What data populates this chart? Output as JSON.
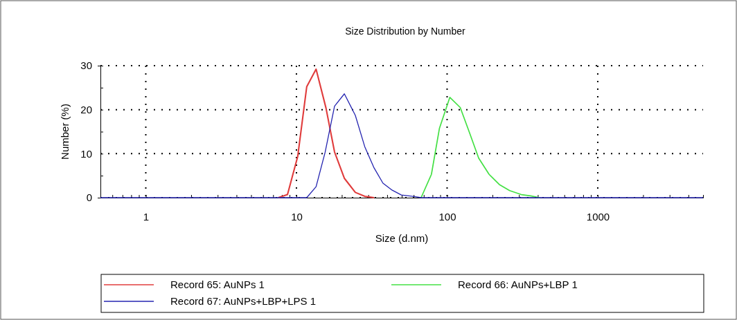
{
  "chart_data": {
    "type": "line",
    "title": "Size Distribution by Number",
    "xlabel": "Size (d.nm)",
    "ylabel": "Number (%)",
    "log": "x",
    "grid": true,
    "legend": "bottom",
    "xlim": [
      0.5,
      5000
    ],
    "ylim": [
      0,
      30
    ],
    "xticks": [
      {
        "value": 0.6,
        "label": null
      },
      {
        "value": 0.7,
        "label": null
      },
      {
        "value": 0.8,
        "label": null
      },
      {
        "value": 0.9,
        "label": null
      },
      1,
      {
        "value": 2,
        "label": null
      },
      {
        "value": 3,
        "label": null
      },
      {
        "value": 4,
        "label": null
      },
      {
        "value": 5,
        "label": null
      },
      {
        "value": 6,
        "label": null
      },
      {
        "value": 7,
        "label": null
      },
      {
        "value": 8,
        "label": null
      },
      {
        "value": 9,
        "label": null
      },
      10,
      {
        "value": 20,
        "label": null
      },
      {
        "value": 30,
        "label": null
      },
      {
        "value": 40,
        "label": null
      },
      {
        "value": 50,
        "label": null
      },
      {
        "value": 60,
        "label": null
      },
      {
        "value": 70,
        "label": null
      },
      {
        "value": 80,
        "label": null
      },
      {
        "value": 90,
        "label": null
      },
      100,
      {
        "value": 200,
        "label": null
      },
      {
        "value": 300,
        "label": null
      },
      {
        "value": 400,
        "label": null
      },
      {
        "value": 500,
        "label": null
      },
      {
        "value": 600,
        "label": null
      },
      {
        "value": 700,
        "label": null
      },
      {
        "value": 800,
        "label": null
      },
      {
        "value": 900,
        "label": null
      },
      1000,
      {
        "value": 2000,
        "label": null
      },
      {
        "value": 3000,
        "label": null
      },
      {
        "value": 4000,
        "label": null
      },
      {
        "value": 5000,
        "label": null
      }
    ],
    "yticks": [
      0,
      {
        "value": 5,
        "label": null
      },
      10,
      {
        "value": 15,
        "label": null
      },
      20,
      {
        "value": 25,
        "label": null
      },
      30
    ],
    "series": [
      {
        "name": "Record 65: AuNPs 1",
        "color": "#e03c3c",
        "x": [
          7.57,
          8.72,
          10.2,
          11.7,
          13.5,
          15.7,
          17.9,
          20.8,
          24.6,
          28.4,
          32.8
        ],
        "values": [
          0,
          0.7,
          9.4,
          25.2,
          29.2,
          20.4,
          10.4,
          4.4,
          1.2,
          0.3,
          0
        ]
      },
      {
        "name": "Record 66: AuNPs+LBP 1",
        "color": "#44e044",
        "x": [
          67.2,
          78.7,
          89.0,
          104.3,
          122.2,
          140.7,
          162,
          190,
          222,
          260,
          311,
          358,
          412
        ],
        "values": [
          0,
          5.3,
          15.8,
          22.8,
          20.5,
          14.8,
          9.0,
          5.3,
          3.0,
          1.6,
          0.7,
          0.4,
          0
        ]
      },
      {
        "name": "Record 67: AuNPs+LBP+LPS 1",
        "color": "#2424b0",
        "x": [
          0.5,
          11.7,
          13.5,
          15.5,
          17.9,
          20.8,
          24.6,
          28.4,
          32.6,
          37.5,
          43.2,
          49.7,
          59.4,
          67.2,
          5000
        ],
        "values": [
          0,
          0,
          2.5,
          10.3,
          20.8,
          23.6,
          18.7,
          11.6,
          6.9,
          3.3,
          1.7,
          0.6,
          0.3,
          0,
          0
        ]
      }
    ]
  }
}
